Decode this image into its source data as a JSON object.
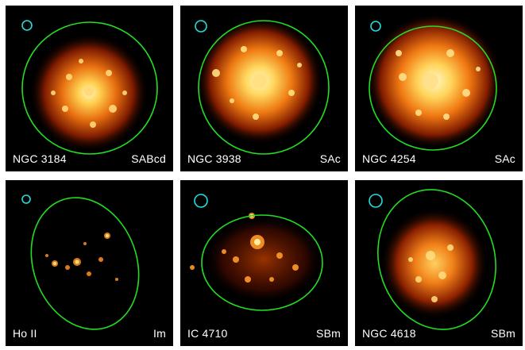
{
  "panels": [
    {
      "name": "NGC 3184",
      "type": "SABcd"
    },
    {
      "name": "NGC 3938",
      "type": "SAc"
    },
    {
      "name": "NGC 4254",
      "type": "SAc"
    },
    {
      "name": "Ho II",
      "type": "Im"
    },
    {
      "name": "IC 4710",
      "type": "SBm"
    },
    {
      "name": "NGC 4618",
      "type": "SBm"
    }
  ],
  "colors": {
    "aperture_ellipse": "#22dd22",
    "beam_circle": "#22dddd",
    "background": "#000000"
  }
}
